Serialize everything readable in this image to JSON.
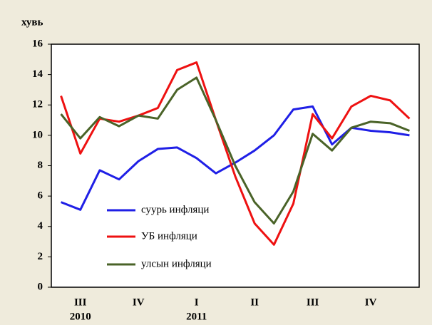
{
  "chart_data": {
    "type": "line",
    "ylabel": "хувь",
    "categories": [
      null,
      "III",
      null,
      null,
      "IV",
      null,
      null,
      "I",
      null,
      null,
      "II",
      null,
      null,
      "III",
      null,
      null,
      "IV",
      null,
      null
    ],
    "categories2": [
      null,
      "2010",
      null,
      null,
      null,
      null,
      null,
      "2011",
      null,
      null,
      null,
      null,
      null,
      null,
      null,
      null,
      null,
      null,
      null
    ],
    "series": [
      {
        "name": "суурь инфляци",
        "color": "#1f1fe6",
        "values": [
          5.6,
          5.1,
          7.7,
          7.1,
          8.3,
          9.1,
          9.2,
          8.5,
          7.5,
          8.2,
          9.0,
          10.0,
          11.7,
          11.9,
          9.4,
          10.5,
          10.3,
          10.2,
          10.0
        ]
      },
      {
        "name": "УБ инфляци",
        "color": "#ee1111",
        "values": [
          12.6,
          8.8,
          11.1,
          10.9,
          11.3,
          11.8,
          14.3,
          14.8,
          11.0,
          7.3,
          4.2,
          2.8,
          5.5,
          11.4,
          9.8,
          11.9,
          12.6,
          12.3,
          11.1
        ]
      },
      {
        "name": "улсын инфляци",
        "color": "#4a6328",
        "values": [
          11.4,
          9.8,
          11.2,
          10.6,
          11.3,
          11.1,
          13.0,
          13.8,
          11.0,
          8.0,
          5.6,
          4.2,
          6.3,
          10.1,
          9.0,
          10.5,
          10.9,
          10.8,
          10.3
        ]
      }
    ],
    "ylim": [
      0,
      16
    ],
    "yticks": [
      0,
      2,
      4,
      6,
      8,
      10,
      12,
      14,
      16
    ]
  }
}
